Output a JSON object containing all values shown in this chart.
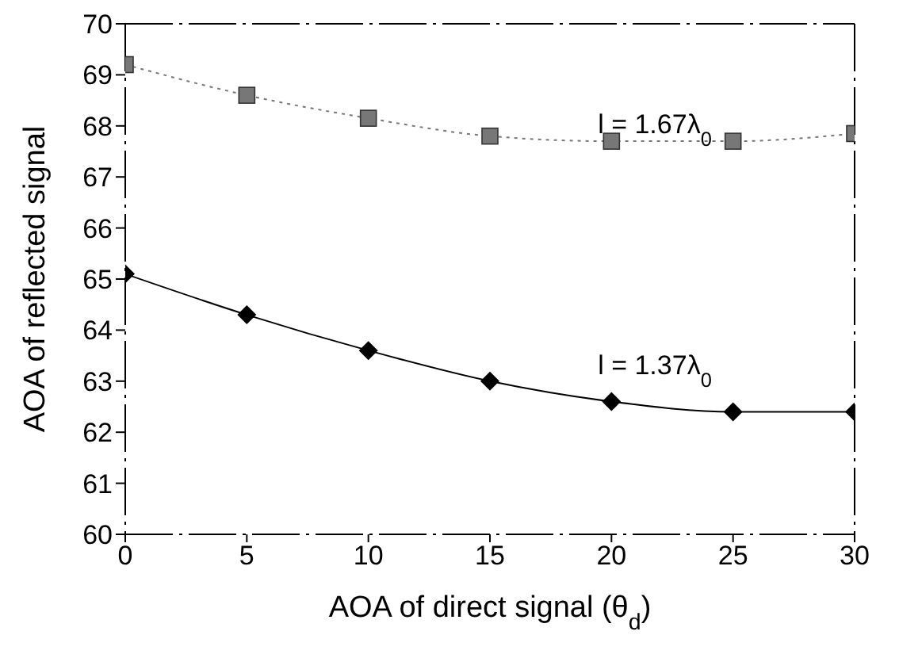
{
  "chart_data": {
    "type": "line",
    "xlabel": "AOA of direct signal (θ$_{d}$)",
    "ylabel": "AOA of reflected signal",
    "x": [
      0,
      5,
      10,
      15,
      20,
      25,
      30
    ],
    "series": [
      {
        "color": "#777777",
        "marker": "square",
        "line_style": "dotted",
        "values": [
          69.2,
          68.6,
          68.15,
          67.8,
          67.7,
          67.7,
          67.85
        ]
      },
      {
        "color": "#000000",
        "marker": "diamond",
        "line_style": "solid",
        "values": [
          65.1,
          64.3,
          63.6,
          63.0,
          62.6,
          62.4,
          62.4
        ]
      }
    ],
    "xlim": [
      0,
      30
    ],
    "xticks": [
      0,
      5,
      10,
      15,
      20,
      25,
      30
    ],
    "ylim": [
      60,
      70
    ],
    "yticks": [
      60,
      61,
      62,
      63,
      64,
      65,
      66,
      67,
      68,
      69,
      70
    ],
    "grid": false,
    "legend": false,
    "annotations": [
      "l = 1.67λ$_{0}$",
      "l = 1.37λ$_{0}$"
    ]
  }
}
